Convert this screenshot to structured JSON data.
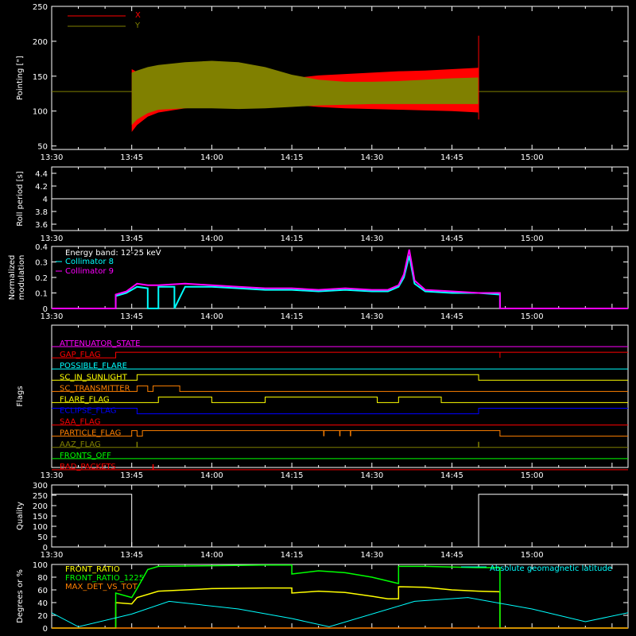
{
  "chart_data": [
    {
      "type": "area",
      "ylabel": "Pointing [\"]",
      "ylim": [
        45,
        250
      ],
      "yticks": [
        50,
        100,
        150,
        200,
        250
      ],
      "xlim": [
        "13:30",
        "15:18"
      ],
      "xticks": [
        "13:30",
        "13:45",
        "14:00",
        "14:15",
        "14:30",
        "14:45",
        "15:00"
      ],
      "legend_position": "top-left",
      "baseline": 128,
      "series": [
        {
          "name": "X",
          "color": "#ff0000",
          "x": [
            "13:45",
            "13:46",
            "13:48",
            "13:50",
            "13:55",
            "14:00",
            "14:05",
            "14:10",
            "14:15",
            "14:20",
            "14:25",
            "14:30",
            "14:35",
            "14:40",
            "14:45",
            "14:50"
          ],
          "upper": [
            160,
            156,
            155,
            153,
            150,
            148,
            146,
            145,
            147,
            151,
            153,
            155,
            157,
            158,
            160,
            162
          ],
          "lower": [
            70,
            80,
            92,
            98,
            104,
            107,
            110,
            111,
            109,
            106,
            104,
            103,
            102,
            101,
            100,
            98
          ]
        },
        {
          "name": "Y",
          "color": "#808000",
          "x": [
            "13:45",
            "13:46",
            "13:48",
            "13:50",
            "13:55",
            "14:00",
            "14:05",
            "14:10",
            "14:15",
            "14:20",
            "14:25",
            "14:30",
            "14:35",
            "14:40",
            "14:45",
            "14:50"
          ],
          "upper": [
            155,
            158,
            163,
            166,
            170,
            172,
            170,
            163,
            152,
            145,
            142,
            142,
            143,
            145,
            147,
            148
          ],
          "lower": [
            80,
            88,
            97,
            102,
            104,
            104,
            103,
            104,
            106,
            108,
            109,
            110,
            110,
            110,
            110,
            110
          ]
        }
      ]
    },
    {
      "type": "line",
      "ylabel": "Roll period [s]",
      "ylim": [
        3.5,
        4.5
      ],
      "yticks": [
        3.6,
        3.8,
        4.0,
        4.2,
        4.4
      ],
      "xticks": [
        "13:30",
        "13:45",
        "14:00",
        "14:15",
        "14:30",
        "14:45",
        "15:00"
      ],
      "series": [
        {
          "name": "",
          "color": "#ffffff",
          "x": [
            "13:30",
            "15:18"
          ],
          "y": [
            4.0,
            4.0
          ]
        }
      ]
    },
    {
      "type": "line",
      "ylabel": "Normalized modulation",
      "ylim": [
        0,
        0.4
      ],
      "yticks": [
        0.0,
        0.1,
        0.2,
        0.3,
        0.4
      ],
      "xticks": [
        "13:30",
        "13:45",
        "14:00",
        "14:15",
        "14:30",
        "14:45",
        "15:00"
      ],
      "annotation": "Energy band: 12-25 keV",
      "series": [
        {
          "name": "Collimator 8",
          "color": "#00ffff",
          "x": [
            "13:30",
            "13:42",
            "13:42",
            "13:44",
            "13:46",
            "13:48",
            "13:48",
            "13:50",
            "13:50",
            "13:53",
            "13:53",
            "13:55",
            "14:00",
            "14:05",
            "14:10",
            "14:15",
            "14:20",
            "14:25",
            "14:30",
            "14:33",
            "14:35",
            "14:36",
            "14:37",
            "14:38",
            "14:40",
            "14:45",
            "14:50",
            "14:54",
            "14:54",
            "15:18"
          ],
          "y": [
            0.0,
            0.0,
            0.08,
            0.1,
            0.14,
            0.13,
            0.0,
            0.0,
            0.14,
            0.14,
            0.0,
            0.14,
            0.14,
            0.13,
            0.12,
            0.12,
            0.11,
            0.12,
            0.11,
            0.11,
            0.14,
            0.2,
            0.34,
            0.16,
            0.11,
            0.1,
            0.1,
            0.09,
            0.0,
            0.0
          ]
        },
        {
          "name": "Collimator 9",
          "color": "#ff00ff",
          "x": [
            "13:30",
            "13:42",
            "13:42",
            "13:44",
            "13:46",
            "13:48",
            "13:50",
            "13:55",
            "14:00",
            "14:05",
            "14:10",
            "14:15",
            "14:20",
            "14:25",
            "14:30",
            "14:33",
            "14:35",
            "14:36",
            "14:37",
            "14:38",
            "14:40",
            "14:45",
            "14:50",
            "14:54",
            "14:54",
            "15:18"
          ],
          "y": [
            0.0,
            0.0,
            0.09,
            0.11,
            0.16,
            0.15,
            0.15,
            0.16,
            0.15,
            0.14,
            0.13,
            0.13,
            0.12,
            0.13,
            0.12,
            0.12,
            0.15,
            0.22,
            0.38,
            0.18,
            0.12,
            0.11,
            0.1,
            0.1,
            0.0,
            0.0
          ]
        }
      ]
    },
    {
      "type": "line",
      "ylabel": "Flags",
      "xticks": [
        "13:30",
        "13:45",
        "14:00",
        "14:15",
        "14:30",
        "14:45",
        "15:00"
      ],
      "flags": [
        {
          "name": "ATTENUATOR_STATE",
          "color": "#ff00ff",
          "steps": [
            [
              "13:30",
              0
            ]
          ]
        },
        {
          "name": "GAP_FLAG",
          "color": "#ff0000",
          "steps": [
            [
              "13:30",
              0
            ],
            [
              "13:42",
              1
            ],
            [
              "14:54",
              0
            ],
            [
              "14:54",
              1
            ]
          ]
        },
        {
          "name": "POSSIBLE_FLARE",
          "color": "#00ffff",
          "steps": [
            [
              "13:30",
              0
            ]
          ]
        },
        {
          "name": "SC_IN_SUNLIGHT",
          "color": "#ffff00",
          "steps": [
            [
              "13:30",
              0
            ],
            [
              "13:46",
              1
            ],
            [
              "14:50",
              0
            ]
          ]
        },
        {
          "name": "SC_TRANSMITTER",
          "color": "#ff8000",
          "steps": [
            [
              "13:30",
              0
            ],
            [
              "13:46",
              1
            ],
            [
              "13:48",
              0
            ],
            [
              "13:49",
              1
            ],
            [
              "13:54",
              0
            ]
          ]
        },
        {
          "name": "FLARE_FLAG",
          "color": "#ffff00",
          "steps": [
            [
              "13:30",
              0
            ],
            [
              "13:50",
              1
            ],
            [
              "14:00",
              0
            ],
            [
              "14:10",
              1
            ],
            [
              "14:31",
              0
            ],
            [
              "14:35",
              1
            ],
            [
              "14:43",
              0
            ]
          ]
        },
        {
          "name": "ECLIPSE_FLAG",
          "color": "#0000ff",
          "steps": [
            [
              "13:30",
              1
            ],
            [
              "13:46",
              0
            ],
            [
              "14:50",
              1
            ]
          ]
        },
        {
          "name": "SAA_FLAG",
          "color": "#ff0000",
          "steps": [
            [
              "13:30",
              0
            ]
          ]
        },
        {
          "name": "PARTICLE_FLAG",
          "color": "#ff8000",
          "steps": [
            [
              "13:30",
              0
            ],
            [
              "13:45",
              1
            ],
            [
              "13:46",
              0
            ],
            [
              "13:47",
              1
            ],
            [
              "14:54",
              0
            ]
          ],
          "spikes": [
            "14:21",
            "14:24",
            "14:26"
          ]
        },
        {
          "name": "AAZ_FLAG",
          "color": "#808000",
          "steps": [
            [
              "13:30",
              0
            ]
          ],
          "spikes": [
            "13:46",
            "14:50"
          ]
        },
        {
          "name": "FRONTS_OFF",
          "color": "#00ff00",
          "steps": [
            [
              "13:30",
              0
            ]
          ]
        },
        {
          "name": "BAD_PACKETS",
          "color": "#ff0000",
          "steps": [
            [
              "13:30",
              0
            ]
          ],
          "spikes": [
            "13:49"
          ]
        }
      ]
    },
    {
      "type": "line",
      "ylabel": "Quality",
      "ylim": [
        0,
        300
      ],
      "yticks": [
        0,
        50,
        100,
        150,
        200,
        250,
        300
      ],
      "xticks": [
        "13:30",
        "13:45",
        "14:00",
        "14:15",
        "14:30",
        "14:45",
        "15:00"
      ],
      "series": [
        {
          "name": "",
          "color": "#ffffff",
          "x": [
            "13:30",
            "13:45",
            "13:45",
            "14:50",
            "14:50",
            "15:18"
          ],
          "y": [
            255,
            255,
            0,
            0,
            255,
            255
          ]
        }
      ]
    },
    {
      "type": "line",
      "ylabel": "Degrees or %",
      "ylim": [
        0,
        100
      ],
      "yticks": [
        0,
        20,
        40,
        60,
        80,
        100
      ],
      "legend_position": "top-left",
      "series": [
        {
          "name": "FRONT_RATIO",
          "color": "#ffff00",
          "x": [
            "13:30",
            "13:42",
            "13:42",
            "13:45",
            "13:46",
            "13:50",
            "14:00",
            "14:10",
            "14:15",
            "14:15",
            "14:20",
            "14:25",
            "14:30",
            "14:33",
            "14:35",
            "14:35",
            "14:40",
            "14:45",
            "14:50",
            "14:54",
            "14:54",
            "15:18"
          ],
          "y": [
            0,
            0,
            40,
            38,
            48,
            58,
            62,
            63,
            63,
            55,
            58,
            56,
            50,
            46,
            46,
            65,
            64,
            60,
            58,
            57,
            0,
            0
          ]
        },
        {
          "name": "FRONT_RATIO_1225",
          "color": "#00ff00",
          "x": [
            "13:30",
            "13:42",
            "13:42",
            "13:45",
            "13:46",
            "13:48",
            "13:50",
            "14:00",
            "14:10",
            "14:15",
            "14:15",
            "14:20",
            "14:25",
            "14:30",
            "14:35",
            "14:35",
            "14:40",
            "14:45",
            "14:50",
            "14:54",
            "14:54",
            "15:18"
          ],
          "y": [
            0,
            0,
            55,
            48,
            62,
            92,
            97,
            98,
            99,
            99,
            85,
            90,
            87,
            80,
            70,
            97,
            97,
            96,
            95,
            95,
            0,
            0
          ]
        },
        {
          "name": "MAX_DET_VS_TOT",
          "color": "#ff8000",
          "x": [
            "13:30",
            "15:18"
          ],
          "y": [
            0,
            0
          ]
        },
        {
          "name": "Absolute geomagnetic latitude",
          "color": "#00ffff",
          "x": [
            "13:30",
            "13:35",
            "13:45",
            "13:52",
            "14:05",
            "14:15",
            "14:22",
            "14:38",
            "14:48",
            "15:00",
            "15:10",
            "15:18"
          ],
          "y": [
            24,
            2,
            22,
            42,
            30,
            15,
            2,
            42,
            48,
            30,
            10,
            24
          ]
        }
      ]
    }
  ]
}
